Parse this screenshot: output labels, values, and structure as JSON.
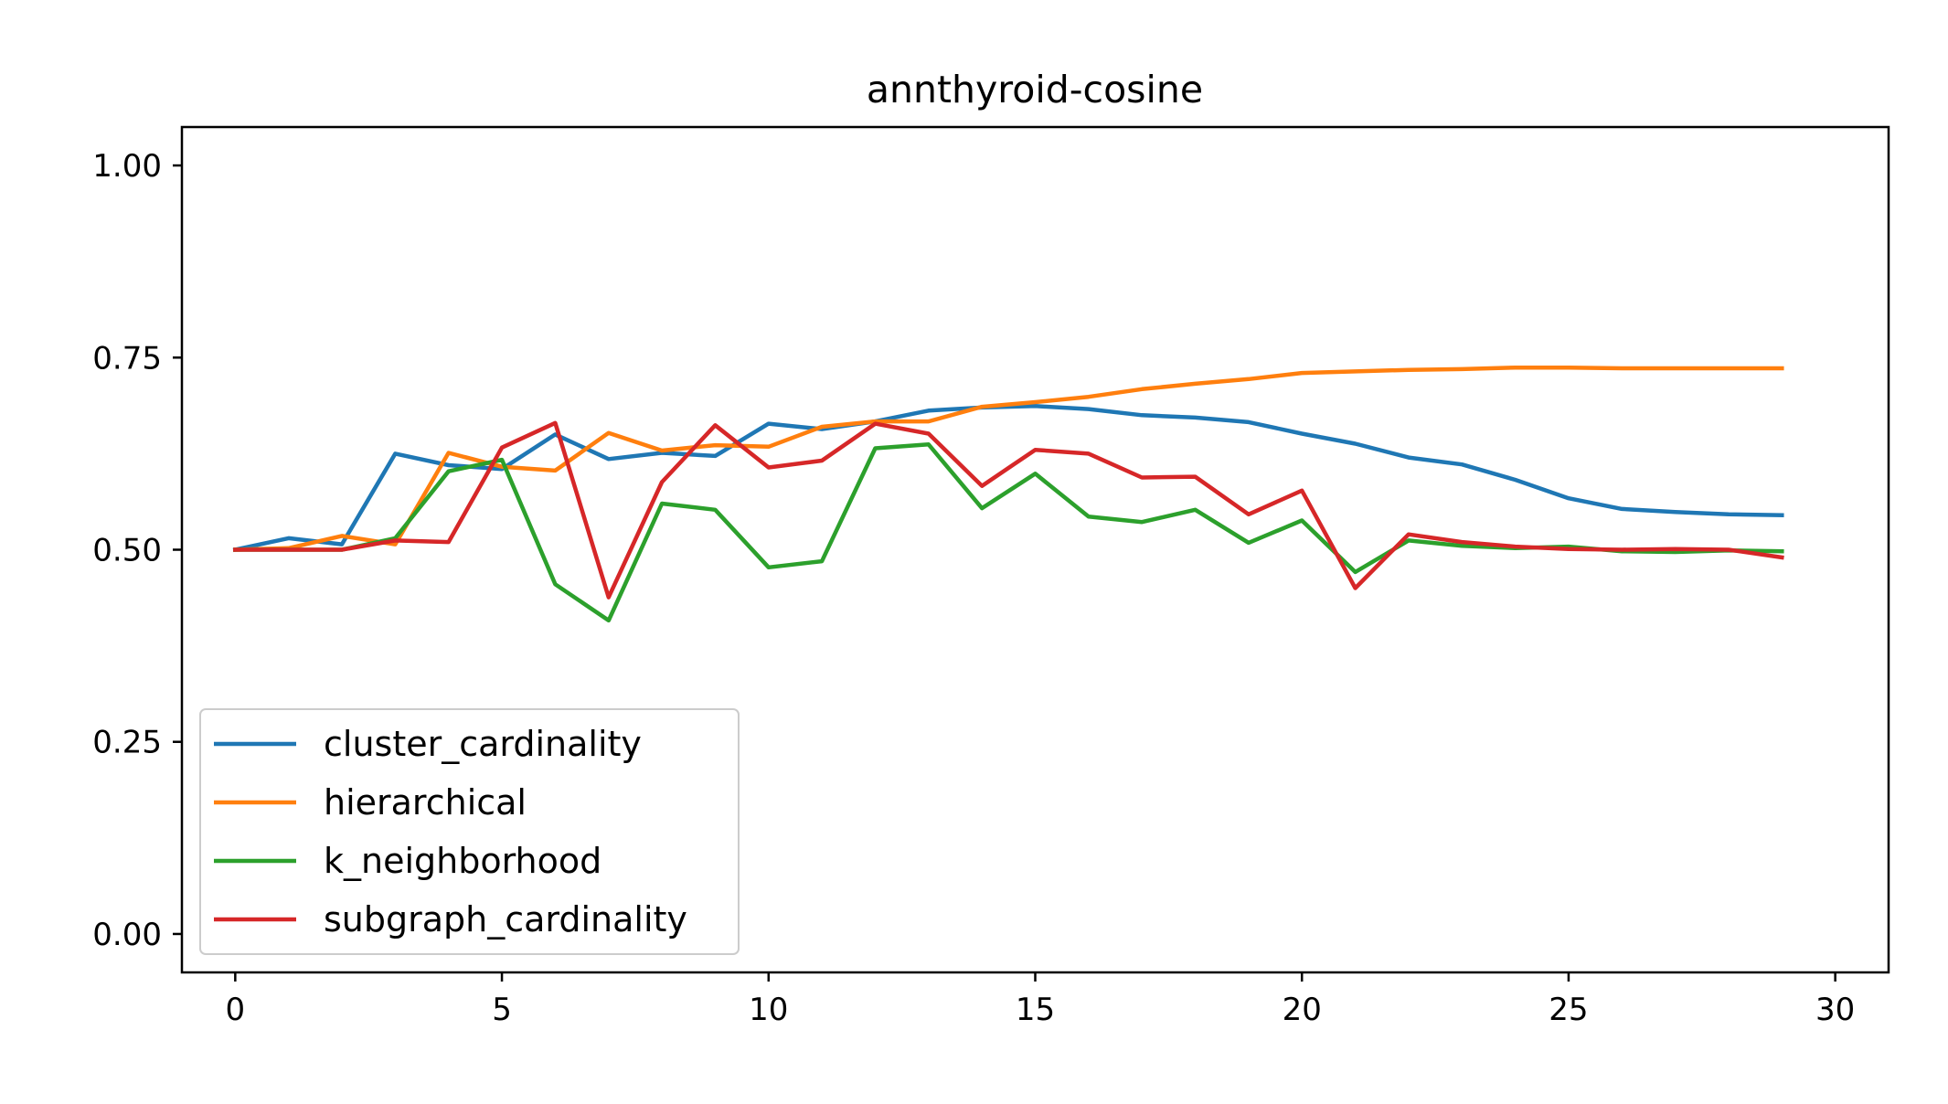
{
  "chart_data": {
    "type": "line",
    "title": "annthyroid-cosine",
    "xlabel": "",
    "ylabel": "",
    "xlim": [
      -1,
      31
    ],
    "ylim": [
      -0.05,
      1.05
    ],
    "xticks": [
      0,
      5,
      10,
      15,
      20,
      25,
      30
    ],
    "yticks": [
      0.0,
      0.25,
      0.5,
      0.75,
      1.0
    ],
    "xtick_labels": [
      "0",
      "5",
      "10",
      "15",
      "20",
      "25",
      "30"
    ],
    "ytick_labels": [
      "0.00",
      "0.25",
      "0.50",
      "0.75",
      "1.00"
    ],
    "grid": false,
    "legend_position": "lower-left",
    "x": [
      0,
      1,
      2,
      3,
      4,
      5,
      6,
      7,
      8,
      9,
      10,
      11,
      12,
      13,
      14,
      15,
      16,
      17,
      18,
      19,
      20,
      21,
      22,
      23,
      24,
      25,
      26,
      27,
      28,
      29
    ],
    "series": [
      {
        "name": "cluster_cardinality",
        "color": "#1f77b4",
        "values": [
          0.5,
          0.515,
          0.507,
          0.625,
          0.61,
          0.605,
          0.65,
          0.618,
          0.626,
          0.622,
          0.664,
          0.657,
          0.667,
          0.681,
          0.685,
          0.687,
          0.683,
          0.675,
          0.672,
          0.666,
          0.651,
          0.638,
          0.62,
          0.611,
          0.591,
          0.567,
          0.553,
          0.549,
          0.546,
          0.545
        ]
      },
      {
        "name": "hierarchical",
        "color": "#ff7f0e",
        "values": [
          0.5,
          0.502,
          0.518,
          0.507,
          0.626,
          0.608,
          0.603,
          0.652,
          0.629,
          0.636,
          0.634,
          0.66,
          0.667,
          0.667,
          0.686,
          0.692,
          0.699,
          0.709,
          0.716,
          0.722,
          0.73,
          0.732,
          0.734,
          0.735,
          0.737,
          0.737,
          0.736,
          0.736,
          0.736,
          0.736
        ]
      },
      {
        "name": "k_neighborhood",
        "color": "#2ca02c",
        "values": [
          0.5,
          0.5,
          0.5,
          0.515,
          0.602,
          0.617,
          0.455,
          0.408,
          0.56,
          0.552,
          0.477,
          0.485,
          0.632,
          0.637,
          0.554,
          0.599,
          0.543,
          0.536,
          0.552,
          0.509,
          0.538,
          0.471,
          0.512,
          0.505,
          0.502,
          0.504,
          0.498,
          0.497,
          0.499,
          0.498
        ]
      },
      {
        "name": "subgraph_cardinality",
        "color": "#d62728",
        "values": [
          0.5,
          0.5,
          0.5,
          0.512,
          0.51,
          0.633,
          0.665,
          0.438,
          0.588,
          0.662,
          0.607,
          0.616,
          0.664,
          0.651,
          0.583,
          0.63,
          0.625,
          0.594,
          0.595,
          0.546,
          0.577,
          0.45,
          0.52,
          0.51,
          0.504,
          0.501,
          0.5,
          0.501,
          0.5,
          0.49
        ]
      }
    ]
  }
}
